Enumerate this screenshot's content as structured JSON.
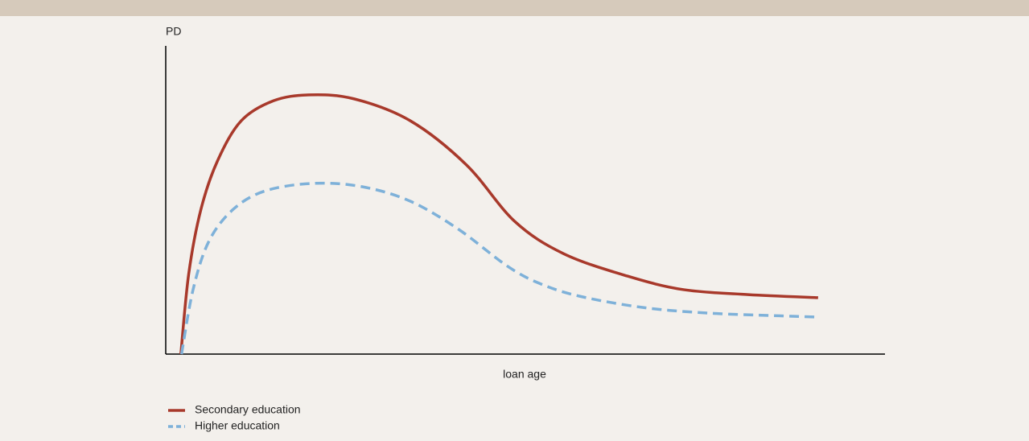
{
  "chart_data": {
    "type": "line",
    "y_label": "PD",
    "x_label": "loan age",
    "xlim": [
      0,
      100
    ],
    "ylim": [
      0,
      100
    ],
    "series": [
      {
        "name": "Secondary education",
        "color": "#a8392b",
        "dash": false,
        "x": [
          2.1,
          3.2,
          4.9,
          7.2,
          10.5,
          15.0,
          20.0,
          26.2,
          34.0,
          41.8,
          48.5,
          55.3,
          64.2,
          72.0,
          81.0,
          90.7
        ],
        "values": [
          0,
          26.1,
          47,
          62.7,
          75.7,
          82.2,
          84.1,
          82.8,
          75.7,
          61.4,
          43.1,
          32.6,
          25.3,
          20.9,
          19.3,
          18.3
        ]
      },
      {
        "name": "Higher education",
        "color": "#7eb1d9",
        "dash": true,
        "x": [
          2.2,
          3.8,
          6.0,
          9.4,
          13.9,
          20.6,
          27.3,
          34.0,
          40.7,
          47.4,
          51.9,
          57.5,
          66.4,
          75.4,
          84.3,
          90.7
        ],
        "values": [
          0,
          20.9,
          36.6,
          47,
          53,
          55.4,
          54.3,
          49.6,
          40.5,
          28.7,
          23,
          18.8,
          15.1,
          13.3,
          12.5,
          12
        ]
      }
    ]
  }
}
